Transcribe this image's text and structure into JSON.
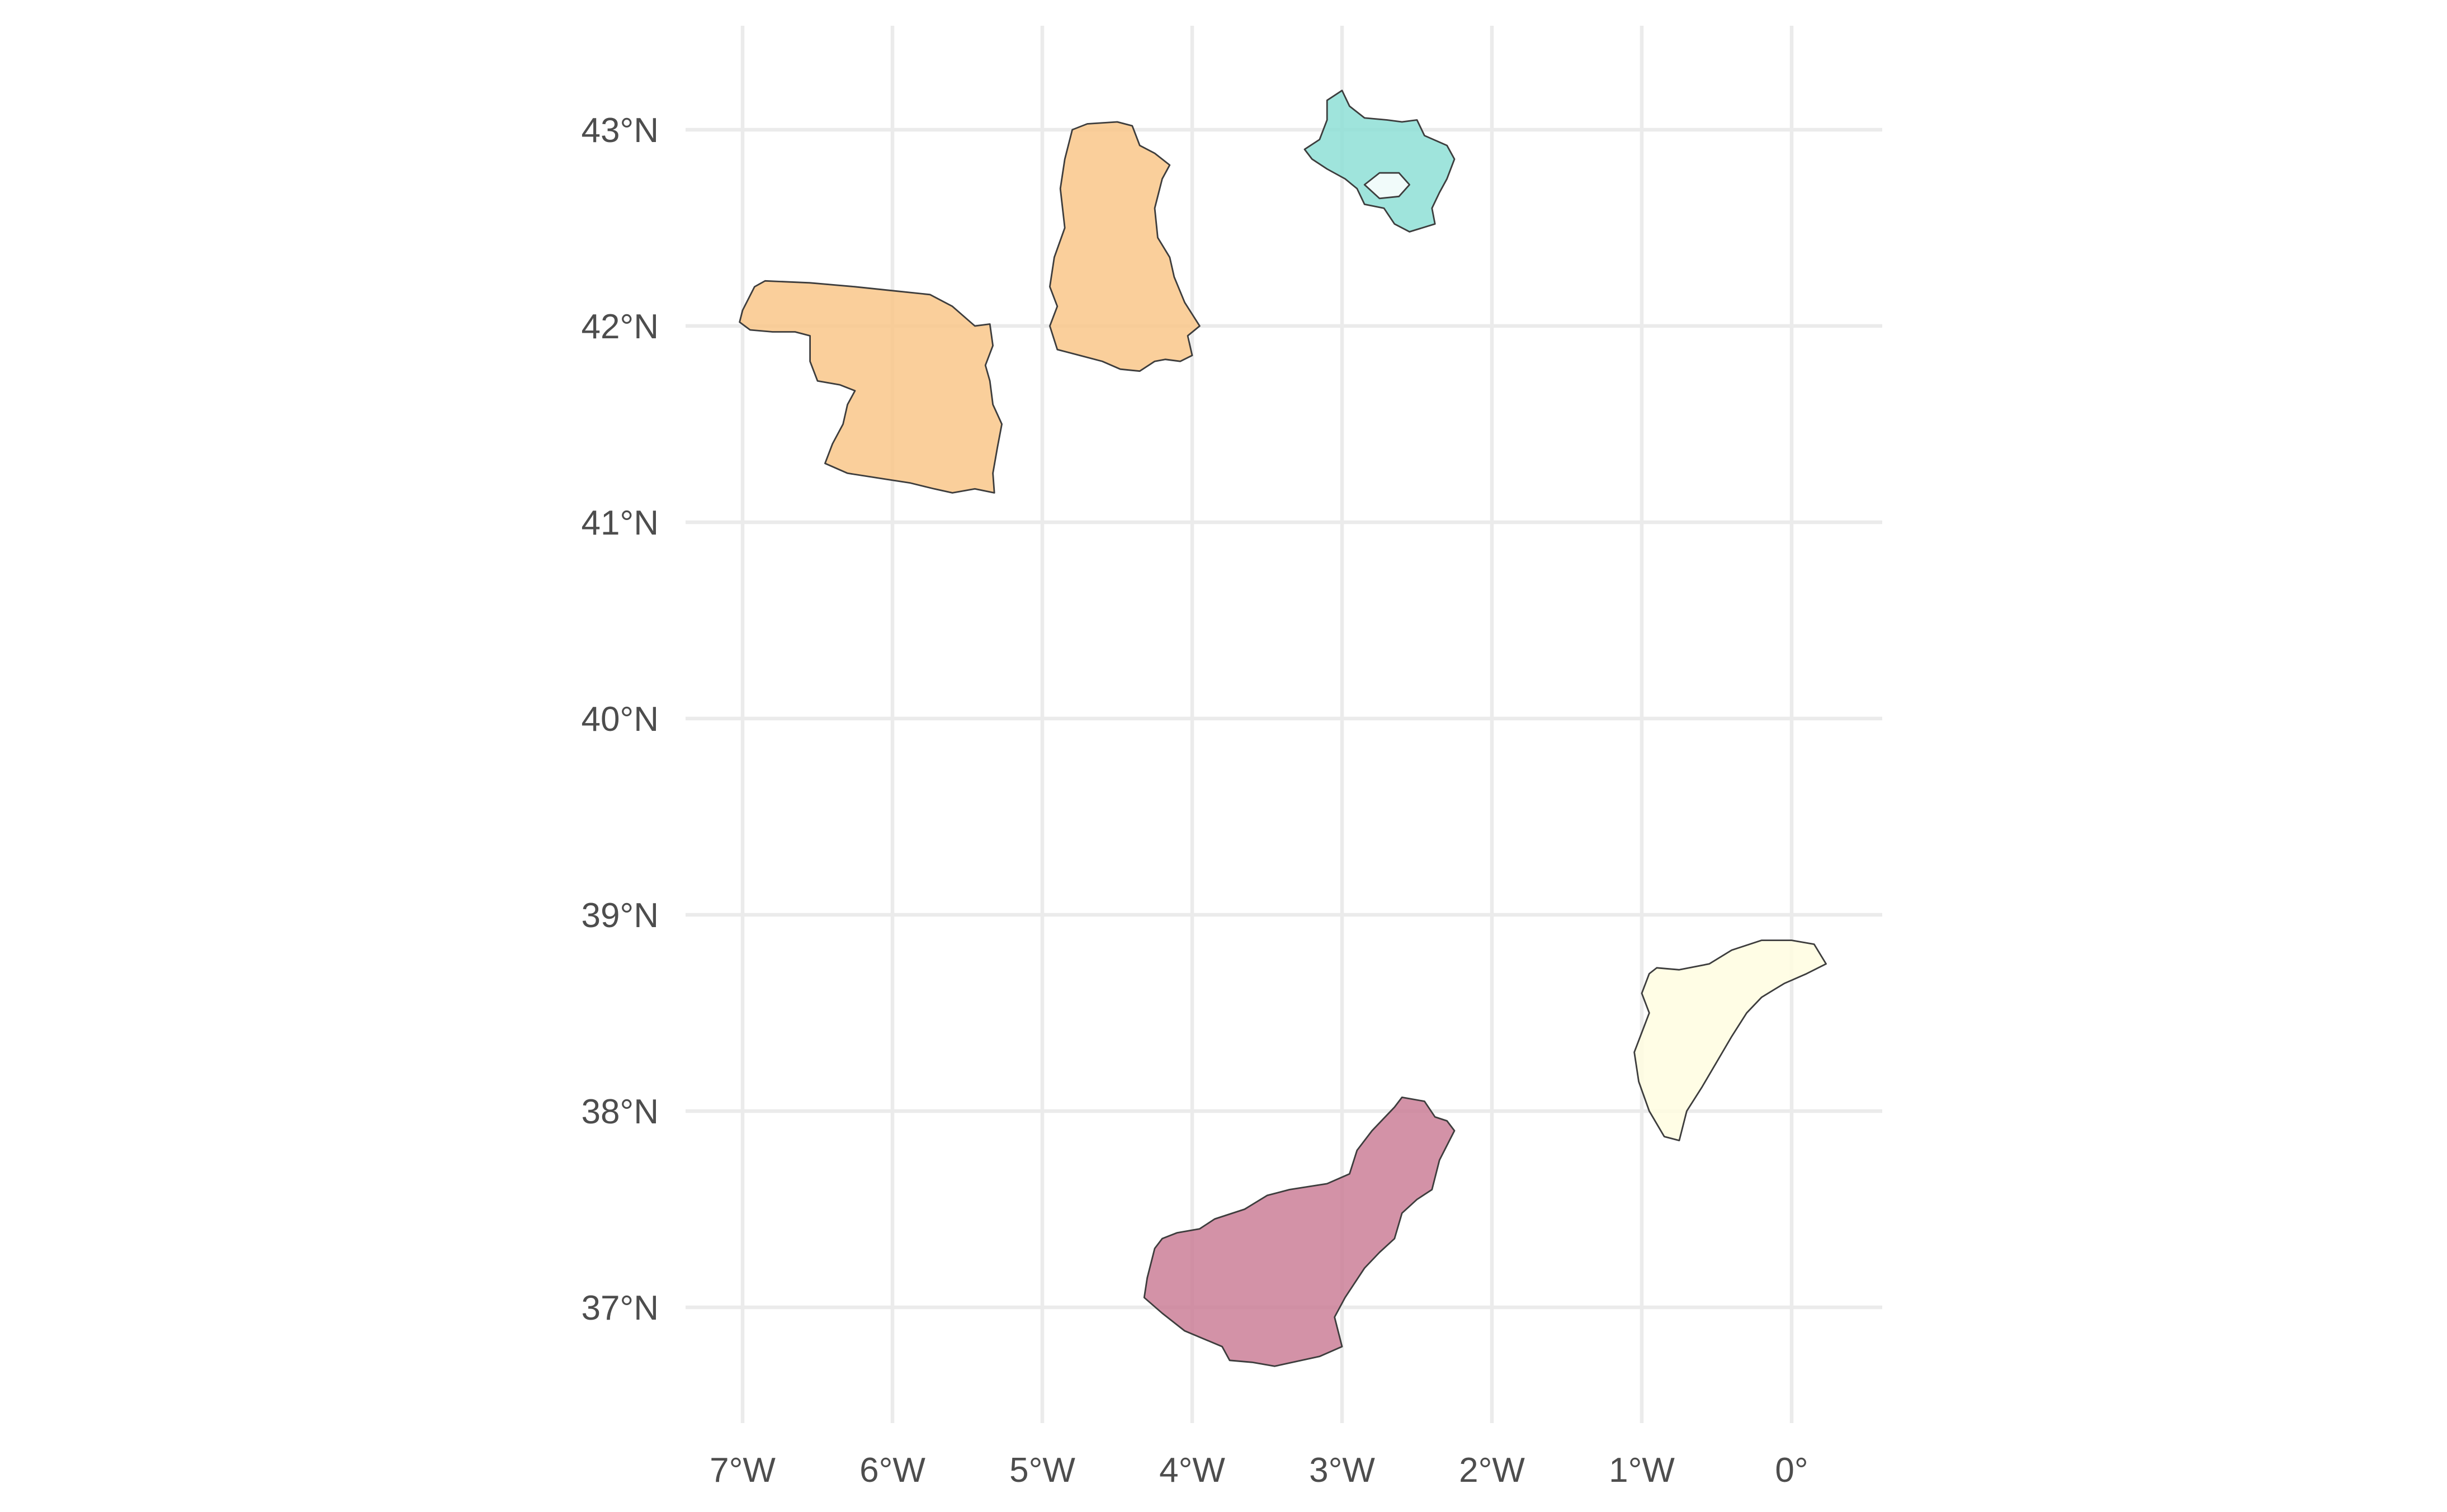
{
  "chart_data": {
    "type": "map",
    "title": "",
    "xlabel": "",
    "ylabel": "",
    "grid": true,
    "legend": "none",
    "xlim": [
      -7.2,
      0.6
    ],
    "ylim": [
      36.5,
      43.55
    ],
    "x_ticks": [
      {
        "value": -7,
        "label": "7°W"
      },
      {
        "value": -6,
        "label": "6°W"
      },
      {
        "value": -5,
        "label": "5°W"
      },
      {
        "value": -4,
        "label": "4°W"
      },
      {
        "value": -3,
        "label": "3°W"
      },
      {
        "value": -2,
        "label": "2°W"
      },
      {
        "value": -1,
        "label": "1°W"
      },
      {
        "value": 0,
        "label": "0°"
      }
    ],
    "y_ticks": [
      {
        "value": 37,
        "label": "37°N"
      },
      {
        "value": 38,
        "label": "38°N"
      },
      {
        "value": 39,
        "label": "39°N"
      },
      {
        "value": 40,
        "label": "40°N"
      },
      {
        "value": 41,
        "label": "41°N"
      },
      {
        "value": 42,
        "label": "42°N"
      },
      {
        "value": 43,
        "label": "43°N"
      }
    ],
    "regions": [
      {
        "id": "west",
        "color": "#f9c78a",
        "outline": [
          [
            -7.0,
            42.08
          ],
          [
            -6.92,
            42.2
          ],
          [
            -6.85,
            42.23
          ],
          [
            -6.55,
            42.22
          ],
          [
            -6.25,
            42.2
          ],
          [
            -6.0,
            42.18
          ],
          [
            -5.75,
            42.16
          ],
          [
            -5.6,
            42.1
          ],
          [
            -5.45,
            42.0
          ],
          [
            -5.35,
            42.01
          ],
          [
            -5.33,
            41.9
          ],
          [
            -5.38,
            41.8
          ],
          [
            -5.35,
            41.72
          ],
          [
            -5.33,
            41.6
          ],
          [
            -5.27,
            41.5
          ],
          [
            -5.3,
            41.38
          ],
          [
            -5.33,
            41.25
          ],
          [
            -5.32,
            41.15
          ],
          [
            -5.45,
            41.17
          ],
          [
            -5.6,
            41.15
          ],
          [
            -5.72,
            41.17
          ],
          [
            -5.88,
            41.2
          ],
          [
            -6.05,
            41.22
          ],
          [
            -6.3,
            41.25
          ],
          [
            -6.45,
            41.3
          ],
          [
            -6.4,
            41.4
          ],
          [
            -6.33,
            41.5
          ],
          [
            -6.3,
            41.6
          ],
          [
            -6.25,
            41.67
          ],
          [
            -6.35,
            41.7
          ],
          [
            -6.5,
            41.72
          ],
          [
            -6.55,
            41.82
          ],
          [
            -6.55,
            41.95
          ],
          [
            -6.65,
            41.97
          ],
          [
            -6.8,
            41.97
          ],
          [
            -6.95,
            41.98
          ],
          [
            -7.02,
            42.02
          ]
        ]
      },
      {
        "id": "north-central",
        "color": "#f9c78a",
        "outline": [
          [
            -4.95,
            42.0
          ],
          [
            -4.9,
            42.1
          ],
          [
            -4.95,
            42.2
          ],
          [
            -4.92,
            42.35
          ],
          [
            -4.85,
            42.5
          ],
          [
            -4.88,
            42.7
          ],
          [
            -4.85,
            42.85
          ],
          [
            -4.8,
            43.0
          ],
          [
            -4.7,
            43.03
          ],
          [
            -4.5,
            43.04
          ],
          [
            -4.4,
            43.02
          ],
          [
            -4.35,
            42.92
          ],
          [
            -4.25,
            42.88
          ],
          [
            -4.15,
            42.82
          ],
          [
            -4.2,
            42.75
          ],
          [
            -4.25,
            42.6
          ],
          [
            -4.23,
            42.45
          ],
          [
            -4.15,
            42.35
          ],
          [
            -4.12,
            42.25
          ],
          [
            -4.05,
            42.12
          ],
          [
            -3.95,
            42.0
          ],
          [
            -4.03,
            41.95
          ],
          [
            -4.0,
            41.85
          ],
          [
            -4.08,
            41.82
          ],
          [
            -4.18,
            41.83
          ],
          [
            -4.25,
            41.82
          ],
          [
            -4.35,
            41.77
          ],
          [
            -4.48,
            41.78
          ],
          [
            -4.6,
            41.82
          ],
          [
            -4.75,
            41.85
          ],
          [
            -4.9,
            41.88
          ]
        ]
      },
      {
        "id": "northeast",
        "color": "#8edfd6",
        "outline": [
          [
            -3.25,
            42.9
          ],
          [
            -3.15,
            42.95
          ],
          [
            -3.1,
            43.05
          ],
          [
            -3.1,
            43.15
          ],
          [
            -3.0,
            43.2
          ],
          [
            -2.95,
            43.12
          ],
          [
            -2.85,
            43.06
          ],
          [
            -2.7,
            43.05
          ],
          [
            -2.6,
            43.04
          ],
          [
            -2.5,
            43.05
          ],
          [
            -2.45,
            42.97
          ],
          [
            -2.3,
            42.92
          ],
          [
            -2.25,
            42.85
          ],
          [
            -2.3,
            42.75
          ],
          [
            -2.35,
            42.68
          ],
          [
            -2.4,
            42.6
          ],
          [
            -2.38,
            42.52
          ],
          [
            -2.55,
            42.48
          ],
          [
            -2.65,
            42.52
          ],
          [
            -2.72,
            42.6
          ],
          [
            -2.85,
            42.62
          ],
          [
            -2.9,
            42.7
          ],
          [
            -2.98,
            42.75
          ],
          [
            -3.1,
            42.8
          ],
          [
            -3.2,
            42.85
          ]
        ]
      },
      {
        "id": "south",
        "color": "#cb7f98",
        "outline": [
          [
            -4.3,
            37.15
          ],
          [
            -4.25,
            37.3
          ],
          [
            -4.2,
            37.35
          ],
          [
            -4.1,
            37.38
          ],
          [
            -3.95,
            37.4
          ],
          [
            -3.85,
            37.45
          ],
          [
            -3.65,
            37.5
          ],
          [
            -3.5,
            37.57
          ],
          [
            -3.35,
            37.6
          ],
          [
            -3.1,
            37.63
          ],
          [
            -2.95,
            37.68
          ],
          [
            -2.9,
            37.8
          ],
          [
            -2.8,
            37.9
          ],
          [
            -2.65,
            38.02
          ],
          [
            -2.6,
            38.07
          ],
          [
            -2.45,
            38.05
          ],
          [
            -2.38,
            37.97
          ],
          [
            -2.3,
            37.95
          ],
          [
            -2.25,
            37.9
          ],
          [
            -2.35,
            37.75
          ],
          [
            -2.4,
            37.6
          ],
          [
            -2.5,
            37.55
          ],
          [
            -2.6,
            37.48
          ],
          [
            -2.65,
            37.35
          ],
          [
            -2.75,
            37.28
          ],
          [
            -2.85,
            37.2
          ],
          [
            -2.98,
            37.05
          ],
          [
            -3.05,
            36.95
          ],
          [
            -3.0,
            36.8
          ],
          [
            -3.15,
            36.75
          ],
          [
            -3.45,
            36.7
          ],
          [
            -3.6,
            36.72
          ],
          [
            -3.75,
            36.73
          ],
          [
            -3.8,
            36.8
          ],
          [
            -4.05,
            36.88
          ],
          [
            -4.2,
            36.97
          ],
          [
            -4.32,
            37.05
          ]
        ]
      },
      {
        "id": "east",
        "color": "#fffde0",
        "outline": [
          [
            -1.0,
            38.4
          ],
          [
            -0.95,
            38.5
          ],
          [
            -1.0,
            38.6
          ],
          [
            -0.95,
            38.7
          ],
          [
            -0.9,
            38.73
          ],
          [
            -0.75,
            38.72
          ],
          [
            -0.55,
            38.75
          ],
          [
            -0.4,
            38.82
          ],
          [
            -0.2,
            38.87
          ],
          [
            0.0,
            38.87
          ],
          [
            0.15,
            38.85
          ],
          [
            0.23,
            38.75
          ],
          [
            0.1,
            38.7
          ],
          [
            -0.05,
            38.65
          ],
          [
            -0.2,
            38.58
          ],
          [
            -0.3,
            38.5
          ],
          [
            -0.4,
            38.38
          ],
          [
            -0.5,
            38.25
          ],
          [
            -0.6,
            38.12
          ],
          [
            -0.7,
            38.0
          ],
          [
            -0.75,
            37.85
          ],
          [
            -0.85,
            37.87
          ],
          [
            -0.95,
            38.0
          ],
          [
            -1.02,
            38.15
          ],
          [
            -1.05,
            38.3
          ]
        ]
      }
    ]
  }
}
